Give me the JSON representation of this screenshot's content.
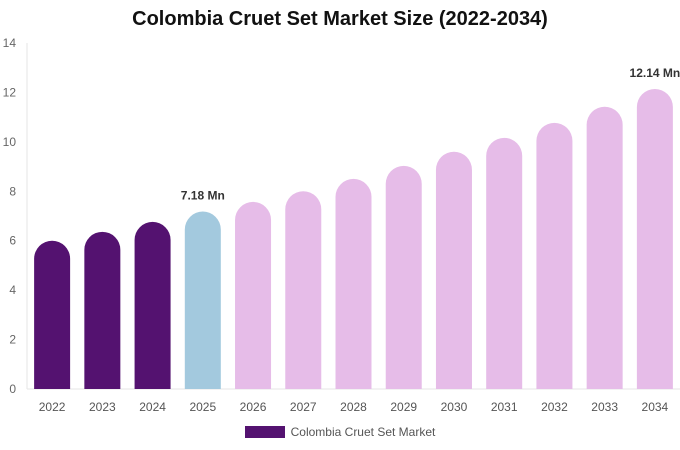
{
  "chart_data": {
    "type": "bar",
    "title": "Colombia Cruet Set Market Size (2022-2034)",
    "categories": [
      "2022",
      "2023",
      "2024",
      "2025",
      "2026",
      "2027",
      "2028",
      "2029",
      "2030",
      "2031",
      "2032",
      "2033",
      "2034"
    ],
    "series": [
      {
        "name": "Colombia Cruet Set Market",
        "values": [
          6.0,
          6.36,
          6.76,
          7.18,
          7.57,
          8.0,
          8.5,
          9.03,
          9.6,
          10.16,
          10.77,
          11.42,
          12.14
        ]
      }
    ],
    "data_labels": {
      "2025": "7.18 Mn",
      "2034": "12.14 Mn"
    },
    "ylim": [
      0,
      14
    ],
    "yticks": [
      0,
      2,
      4,
      6,
      8,
      10,
      12,
      14
    ],
    "grid": false,
    "legend_position": "bottom",
    "colors": {
      "historical": "#541270",
      "current": "#a3c9de",
      "forecast": "#e6bce8"
    }
  }
}
